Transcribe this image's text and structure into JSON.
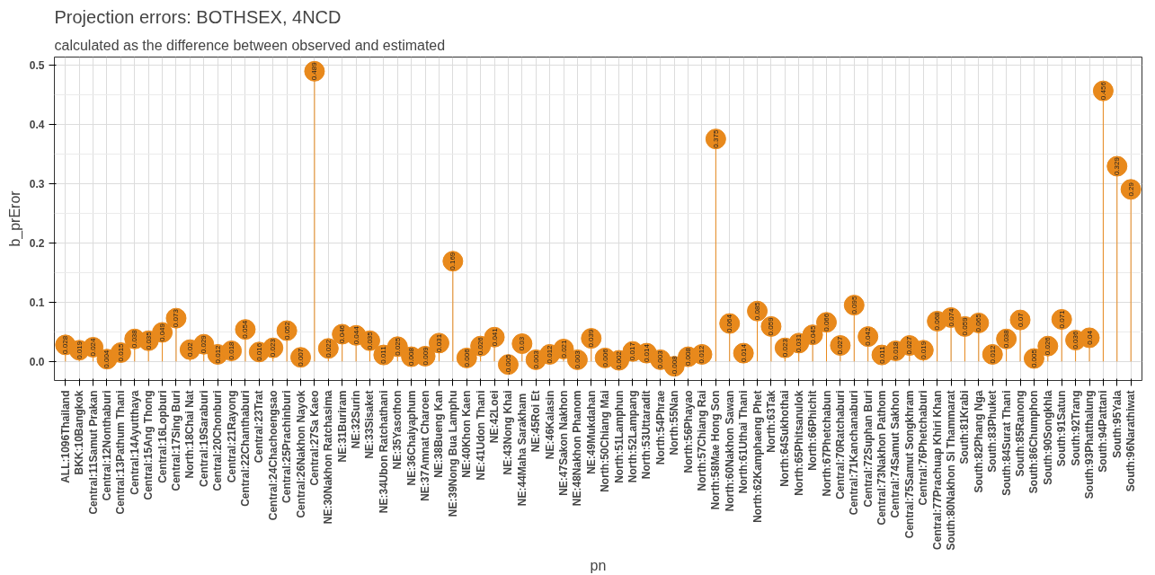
{
  "chart_data": {
    "type": "lollipop",
    "title": "Projection errors: BOTHSEX, 4NCD",
    "subtitle": "calculated as the difference between observed and estimated",
    "xlabel": "pn",
    "ylabel": "b_prEror",
    "categories": [
      "ALL:1096Thailand",
      "BKK:10Bangkok",
      "Central:11Samut Prakan",
      "Central:12Nonthaburi",
      "Central:13Pathum Thani",
      "Central:14Ayutthaya",
      "Central:15Ang Thong",
      "Central:16Lopburi",
      "Central:17Sing Buri",
      "North:18Chai Nat",
      "Central:19Saraburi",
      "Central:20Chonburi",
      "Central:21Rayong",
      "Central:22Chanthaburi",
      "Central:23Trat",
      "Central:24Chachoengsao",
      "Central:25Prachinburi",
      "Central:26Nakhon Nayok",
      "Central:27Sa Kaeo",
      "NE:30Nakhon Ratchasima",
      "NE:31Buriram",
      "NE:32Surin",
      "NE:33Sisaket",
      "NE:34Ubon Ratchathani",
      "NE:35Yasothon",
      "NE:36Chaiyaphum",
      "NE:37Amnat Charoen",
      "NE:38Bueng Kan",
      "NE:39Nong Bua Lamphu",
      "NE:40Khon Kaen",
      "NE:41Udon Thani",
      "NE:42Loei",
      "NE:43Nong Khai",
      "NE:44Maha  Sarakham",
      "NE:45Roi Et",
      "NE:46Kalasin",
      "NE:47Sakon Nakhon",
      "NE:48Nakhon Phanom",
      "NE:49Mukdahan",
      "North:50Chiang Mai",
      "North:51Lamphun",
      "North:52Lampang",
      "North:53Uttaradit",
      "North:54Phrae",
      "North:55Nan",
      "North:56Phayao",
      "North:57Chiang Rai",
      "North:58Mae Hong Son",
      "North:60Nakhon Sawan",
      "North:61Uthai Thani",
      "North:62Kamphaeng Phet",
      "North:63Tak",
      "North:64Sukhothai",
      "North:65Phitsanulok",
      "North:66Phichit",
      "North:67Phetchabun",
      "Central:70Ratchaburi",
      "Central:71Kanchanaburi",
      "Central:72Suphan Buri",
      "Central:73Nakhon Pathom",
      "Central:74Samut Sakhon",
      "Central:75Samut Songkhram",
      "Central:76Phetchaburi",
      "Central:77Prachuap Khiri Khan",
      "South:80Nakhon Si Thammarat",
      "South:81Krabi",
      "South:82Phang Nga",
      "South:83Phuket",
      "South:84Surat Thani",
      "South:85Ranong",
      "South:86Chumphon",
      "South:90Songkhla",
      "South:91Satun",
      "South:92Trang",
      "South:93Phatthalung",
      "South:94Pattani",
      "South:95Yala",
      "South:96Narathiwat"
    ],
    "values": [
      0.028,
      0.019,
      0.024,
      0.004,
      0.015,
      0.038,
      0.035,
      0.049,
      0.073,
      0.02,
      0.029,
      0.012,
      0.018,
      0.054,
      0.016,
      0.023,
      0.052,
      0.007,
      0.489,
      0.022,
      0.046,
      0.044,
      0.035,
      0.011,
      0.025,
      0.008,
      0.009,
      0.031,
      0.169,
      0.006,
      0.026,
      0.041,
      -0.005,
      0.03,
      0.003,
      0.012,
      0.021,
      0.003,
      0.039,
      0.006,
      0.002,
      0.017,
      0.014,
      0.003,
      -0.008,
      0.008,
      0.012,
      0.375,
      0.064,
      0.014,
      0.085,
      0.059,
      0.023,
      0.031,
      0.045,
      0.066,
      0.027,
      0.095,
      0.042,
      0.011,
      0.018,
      0.027,
      0.019,
      0.068,
      0.074,
      0.059,
      0.065,
      0.012,
      0.038,
      0.07,
      0.005,
      0.026,
      0.071,
      0.036,
      0.04,
      0.456,
      0.329,
      0.29
    ],
    "color": "#e8891c",
    "marker": "circle",
    "data_labels": true,
    "grid": true,
    "ylim": [
      -0.032,
      0.513
    ],
    "yticks": [
      {
        "value": 0,
        "label": "0.0"
      },
      {
        "value": 0.1,
        "label": "0.1"
      },
      {
        "value": 0.2,
        "label": "0.2"
      },
      {
        "value": 0.3,
        "label": "0.3"
      },
      {
        "value": 0.4,
        "label": "0.4"
      },
      {
        "value": 0.5,
        "label": "0.5"
      }
    ]
  }
}
